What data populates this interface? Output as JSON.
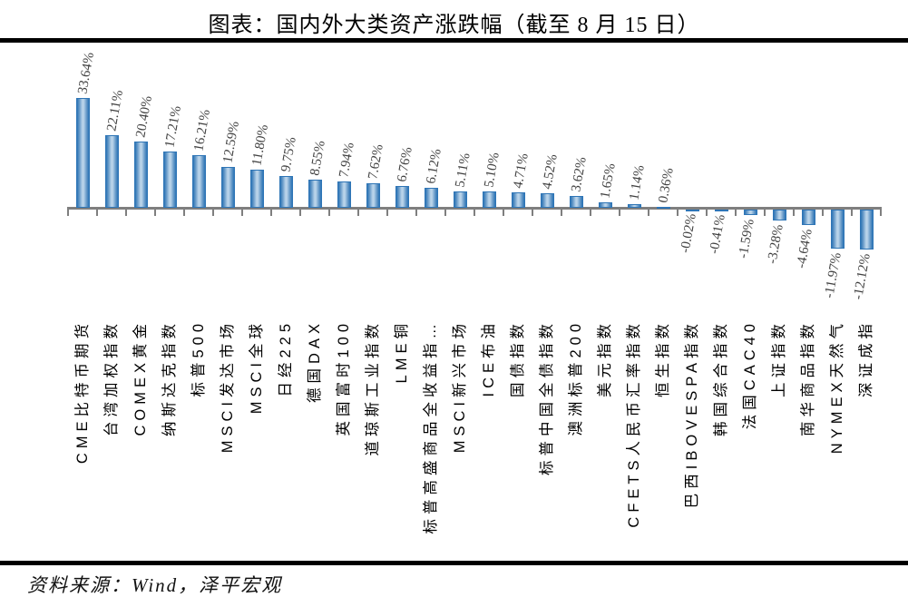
{
  "title": "图表：国内外大类资产涨跌幅（截至 8 月 15 日）",
  "source": "资料来源：Wind，泽平宏观",
  "colors": {
    "bar_edge": "#2E75B6",
    "bar_mid": "#B9D3E9",
    "axis": "#7F7F7F",
    "value_label": "#404040",
    "category_label": "#000000",
    "divider": "#000000",
    "background": "#FFFFFF"
  },
  "chart_data": {
    "type": "bar",
    "title": "图表：国内外大类资产涨跌幅（截至 8 月 15 日）",
    "xlabel": "",
    "ylabel": "",
    "ylim": [
      -13,
      35
    ],
    "grid": false,
    "legend": false,
    "value_format": "0.00%",
    "label_rotation_deg": -80,
    "category_rotation_deg": -90,
    "categories": [
      "CME比特币期货",
      "台湾加权指数",
      "COMEX黄金",
      "纳斯达克指数",
      "标普500",
      "MSCI发达市场",
      "MSCI全球",
      "日经225",
      "德国DAX",
      "英国富时100",
      "道琼斯工业指数",
      "LME铜",
      "标普高盛商品全收益指…",
      "MSCI新兴市场",
      "ICE布油",
      "国债指数",
      "标普中国全债指数",
      "澳洲标普200",
      "美元指数",
      "CFETS人民币汇率指数",
      "恒生指数",
      "巴西IBOVESPA指数",
      "韩国综合指数",
      "法国CAC40",
      "上证指数",
      "南华商品指数",
      "NYMEX天然气",
      "深证成指"
    ],
    "values": [
      33.64,
      22.11,
      20.4,
      17.21,
      16.21,
      12.59,
      11.8,
      9.75,
      8.55,
      7.94,
      7.62,
      6.76,
      6.12,
      5.11,
      5.1,
      4.71,
      4.52,
      3.62,
      1.65,
      1.14,
      0.36,
      -0.02,
      -0.41,
      -1.59,
      -3.28,
      -4.64,
      -11.97,
      -12.12
    ]
  }
}
